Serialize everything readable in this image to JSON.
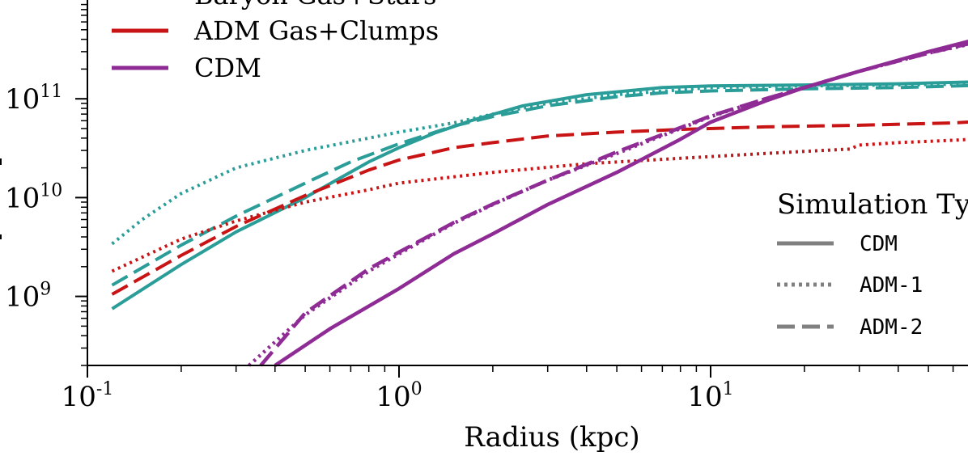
{
  "chart_data": {
    "type": "line",
    "xscale": "log",
    "yscale": "log",
    "xlabel": "Radius (kpc)",
    "ylabel": "",
    "xlim": [
      0.1,
      80
    ],
    "ylim": [
      200000000,
      1000000000000
    ],
    "x_ticks": [
      {
        "base": "10",
        "exp": "-1",
        "value": 0.1
      },
      {
        "base": "10",
        "exp": "0",
        "value": 1
      },
      {
        "base": "10",
        "exp": "1",
        "value": 10
      }
    ],
    "y_ticks": [
      {
        "base": "10",
        "exp": "9",
        "value": 1000000000
      },
      {
        "base": "10",
        "exp": "10",
        "value": 10000000000
      },
      {
        "base": "10",
        "exp": "11",
        "value": 100000000000
      }
    ],
    "colors": {
      "baryon": "#2a9d98",
      "adm": "#c81414",
      "cdm": "#8e2b94",
      "key": "#808080"
    },
    "legend_components": {
      "placement": "top-left",
      "entries": [
        {
          "label": "Baryon Gas+Stars",
          "color": "#2a9d98"
        },
        {
          "label": "ADM Gas+Clumps",
          "color": "#c81414"
        },
        {
          "label": "CDM",
          "color": "#8e2b94"
        }
      ]
    },
    "legend_sim": {
      "placement": "right",
      "title": "Simulation Type",
      "entries": [
        {
          "label": "CDM",
          "style": "solid"
        },
        {
          "label": "ADM-1",
          "style": "dotted"
        },
        {
          "label": "ADM-2",
          "style": "dashed"
        }
      ]
    },
    "series": [
      {
        "name": "Baryon Gas+Stars (CDM)",
        "component": "baryon",
        "style": "solid",
        "x": [
          0.12,
          0.2,
          0.3,
          0.5,
          0.8,
          1.0,
          1.3,
          1.7,
          2.5,
          4,
          7,
          10,
          20,
          40,
          80
        ],
        "y": [
          750000000.0,
          2100000000.0,
          4500000000.0,
          10000000000.0,
          23000000000.0,
          32000000000.0,
          45000000000.0,
          60000000000.0,
          85000000000.0,
          110000000000.0,
          130000000000.0,
          135000000000.0,
          138000000000.0,
          142000000000.0,
          150000000000.0
        ]
      },
      {
        "name": "Baryon Gas+Stars (ADM-1)",
        "component": "baryon",
        "style": "dotted",
        "x": [
          0.12,
          0.15,
          0.2,
          0.3,
          0.5,
          0.8,
          1.0,
          1.5,
          2,
          3,
          5,
          10,
          20,
          40,
          80
        ],
        "y": [
          3400000000.0,
          6000000000.0,
          11000000000.0,
          20000000000.0,
          30000000000.0,
          40000000000.0,
          46000000000.0,
          57000000000.0,
          70000000000.0,
          90000000000.0,
          110000000000.0,
          130000000000.0,
          135000000000.0,
          138000000000.0,
          142000000000.0
        ]
      },
      {
        "name": "Baryon Gas+Stars (ADM-2)",
        "component": "baryon",
        "style": "dashed",
        "x": [
          0.12,
          0.2,
          0.3,
          0.5,
          0.7,
          1.0,
          1.5,
          2,
          3,
          5,
          7,
          10,
          20,
          40,
          80
        ],
        "y": [
          1300000000.0,
          3300000000.0,
          6500000000.0,
          14000000000.0,
          23000000000.0,
          35000000000.0,
          53000000000.0,
          66000000000.0,
          85000000000.0,
          105000000000.0,
          115000000000.0,
          120000000000.0,
          126000000000.0,
          130000000000.0,
          138000000000.0
        ]
      },
      {
        "name": "ADM Gas+Clumps (ADM-1)",
        "component": "adm",
        "style": "dotted",
        "x": [
          0.12,
          0.2,
          0.3,
          0.5,
          0.8,
          1.0,
          2,
          4,
          8,
          15,
          28,
          30,
          40,
          60,
          80
        ],
        "y": [
          1800000000.0,
          3800000000.0,
          5800000000.0,
          9000000000.0,
          12000000000.0,
          14000000000.0,
          18000000000.0,
          22000000000.0,
          25000000000.0,
          28000000000.0,
          31000000000.0,
          34000000000.0,
          36000000000.0,
          38000000000.0,
          40000000000.0
        ]
      },
      {
        "name": "ADM Gas+Clumps (ADM-2)",
        "component": "adm",
        "style": "dashed",
        "x": [
          0.12,
          0.2,
          0.3,
          0.5,
          0.8,
          1.0,
          1.5,
          2,
          3,
          5,
          8,
          15,
          30,
          60,
          80
        ],
        "y": [
          1050000000.0,
          2600000000.0,
          5100000000.0,
          10500000000.0,
          19000000000.0,
          24000000000.0,
          32000000000.0,
          36000000000.0,
          42000000000.0,
          46000000000.0,
          49000000000.0,
          52000000000.0,
          54000000000.0,
          57000000000.0,
          60000000000.0
        ]
      },
      {
        "name": "CDM (CDM)",
        "component": "cdm",
        "style": "solid",
        "x": [
          0.4,
          0.6,
          1.0,
          1.5,
          2,
          3,
          5,
          8,
          10,
          15,
          20,
          30,
          50,
          80
        ],
        "y": [
          200000000.0,
          470000000.0,
          1200000000.0,
          2700000000.0,
          4300000000.0,
          8500000000.0,
          18000000000.0,
          39000000000.0,
          58000000000.0,
          95000000000.0,
          130000000000.0,
          190000000000.0,
          300000000000.0,
          440000000000.0
        ]
      },
      {
        "name": "CDM (ADM-1)",
        "component": "cdm",
        "style": "dotted",
        "x": [
          0.33,
          0.5,
          0.8,
          1.0,
          1.5,
          2,
          3,
          5,
          8,
          10,
          15,
          20,
          30,
          50,
          80
        ],
        "y": [
          200000000.0,
          650000000.0,
          1800000000.0,
          2700000000.0,
          5500000000.0,
          8500000000.0,
          15000000000.0,
          28000000000.0,
          50000000000.0,
          66000000000.0,
          100000000000.0,
          130000000000.0,
          190000000000.0,
          290000000000.0,
          400000000000.0
        ]
      },
      {
        "name": "CDM (ADM-2)",
        "component": "cdm",
        "style": "dashed",
        "x": [
          0.36,
          0.5,
          0.8,
          1.0,
          1.5,
          2,
          3,
          5,
          8,
          10,
          15,
          20,
          30,
          50,
          80
        ],
        "y": [
          200000000.0,
          680000000.0,
          1900000000.0,
          2800000000.0,
          5600000000.0,
          8600000000.0,
          15000000000.0,
          29000000000.0,
          51000000000.0,
          67000000000.0,
          100000000000.0,
          130000000000.0,
          190000000000.0,
          290000000000.0,
          410000000000.0
        ]
      }
    ]
  }
}
